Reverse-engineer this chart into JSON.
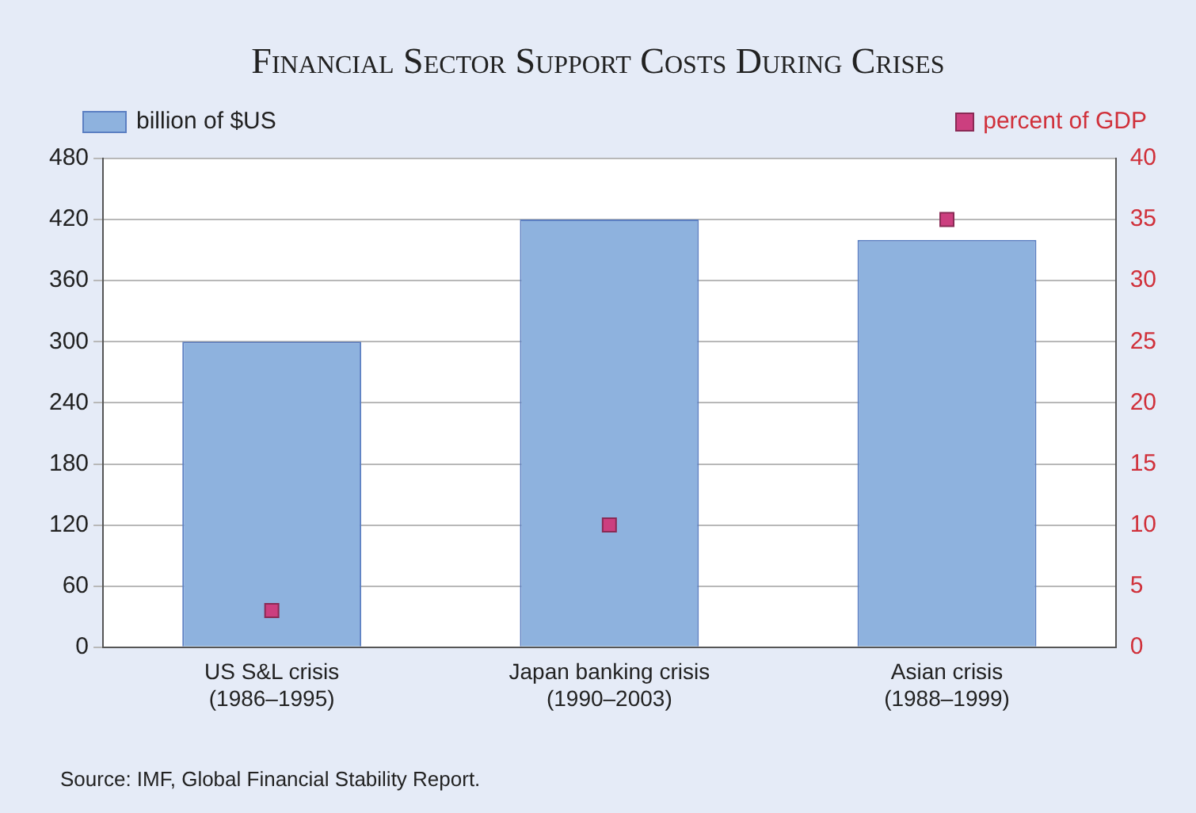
{
  "chart_data": {
    "type": "bar",
    "title": "Financial Sector Support Costs During Crises",
    "categories": [
      "US S&L crisis\n(1986–1995)",
      "Japan banking crisis\n(1990–2003)",
      "Asian crisis\n(1988–1999)"
    ],
    "series": [
      {
        "name": "billion of $US",
        "color": "#8eb2de",
        "values": [
          300,
          420,
          400
        ]
      },
      {
        "name": "percent of GDP",
        "type": "scatter",
        "axis": "y2",
        "color": "#cc3f7f",
        "values": [
          3,
          10,
          35
        ],
        "marker": "square"
      }
    ],
    "ylim": [
      0,
      480
    ],
    "yticks": [
      0,
      60,
      120,
      180,
      240,
      300,
      360,
      420,
      480
    ],
    "y2lim": [
      0,
      40
    ],
    "y2ticks": [
      0,
      5,
      10,
      15,
      20,
      25,
      30,
      35,
      40
    ],
    "grid": "y",
    "legend": "top",
    "annotations": [
      "Source: IMF, Global Financial Stability Report."
    ]
  }
}
